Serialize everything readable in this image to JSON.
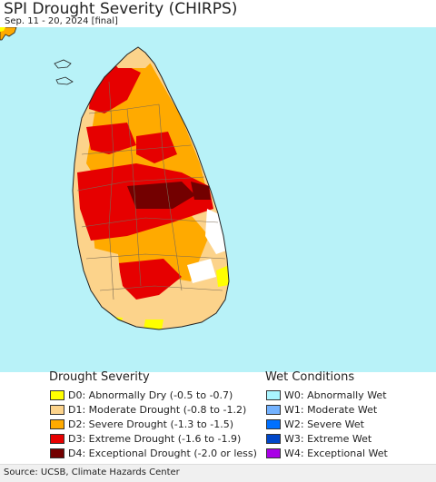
{
  "title": "SPI Drought Severity (CHIRPS)",
  "subtitle": "Sep. 11 - 20, 2024 [final]",
  "map": {
    "colors": {
      "ocean": "#b8f2f8",
      "land_base": "#fccf86",
      "none": "#ffffff",
      "d0": "#ffff00",
      "d1": "#fcd38b",
      "d2": "#ffaa00",
      "d3": "#e60000",
      "d4": "#730000",
      "boundary": "#7a6a55"
    }
  },
  "legend": {
    "drought": {
      "heading": "Drought Severity",
      "items": [
        {
          "label": "D0: Abnormally Dry (-0.5 to -0.7)",
          "color": "#ffff00"
        },
        {
          "label": "D1: Moderate Drought (-0.8 to -1.2)",
          "color": "#fcd38b"
        },
        {
          "label": "D2: Severe Drought (-1.3 to -1.5)",
          "color": "#ffaa00"
        },
        {
          "label": "D3: Extreme Drought (-1.6 to -1.9)",
          "color": "#e60000"
        },
        {
          "label": "D4: Exceptional Drought (-2.0 or less)",
          "color": "#730000"
        }
      ]
    },
    "wet": {
      "heading": "Wet Conditions",
      "items": [
        {
          "label": "W0: Abnormally Wet",
          "color": "#aaf5ff"
        },
        {
          "label": "W1: Moderate Wet",
          "color": "#73b2ff"
        },
        {
          "label": "W2: Severe Wet",
          "color": "#0070ff"
        },
        {
          "label": "W3: Extreme Wet",
          "color": "#0046c8"
        },
        {
          "label": "W4: Exceptional Wet",
          "color": "#a900e6"
        }
      ]
    }
  },
  "source": "Source: UCSB, Climate Hazards Center"
}
